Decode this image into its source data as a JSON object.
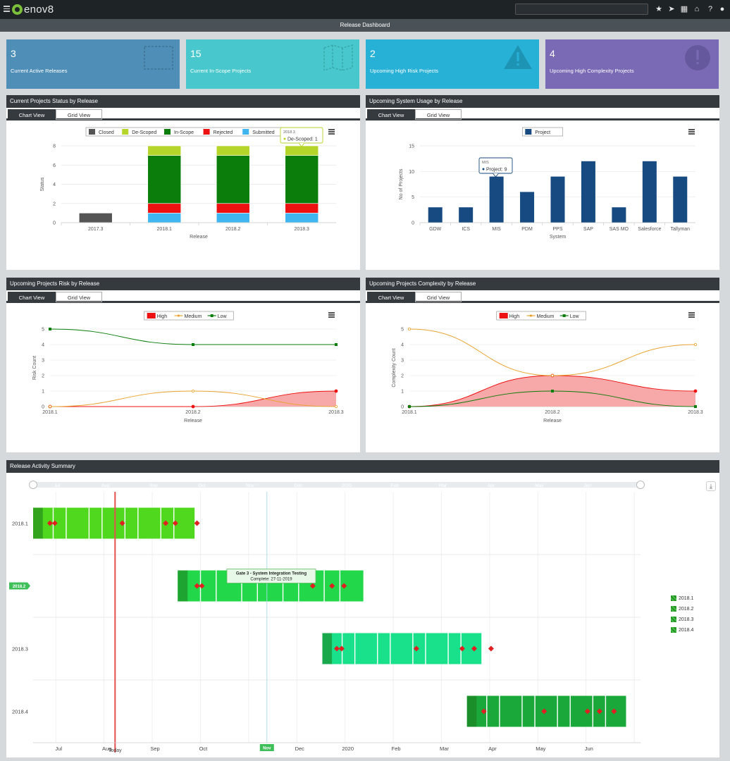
{
  "app": {
    "logo_text": "enov8",
    "page_title": "Release Dashboard"
  },
  "top_icons": [
    "star-icon",
    "rocket-icon",
    "calendar-icon",
    "store-icon",
    "help-icon",
    "user-icon"
  ],
  "cards": [
    {
      "value": "3",
      "label": "Current Active Releases",
      "color": "#4f8fb7"
    },
    {
      "value": "15",
      "label": "Current In-Scope Projects",
      "color": "#48c8cc"
    },
    {
      "value": "2",
      "label": "Upcoming High Risk Projects",
      "color": "#27b1d6"
    },
    {
      "value": "4",
      "label": "Upcoming High Complexity Projects",
      "color": "#7a6ab5"
    }
  ],
  "tabs": {
    "chart": "Chart View",
    "grid": "Grid View"
  },
  "panels": {
    "status": {
      "title": "Current Projects Status by Release"
    },
    "usage": {
      "title": "Upcoming System Usage by Release"
    },
    "risk": {
      "title": "Upcoming Projects Risk by Release"
    },
    "complexity": {
      "title": "Upcoming Projects Complexity by Release"
    },
    "activity": {
      "title": "Release Activity Summary"
    }
  },
  "chart_data": [
    {
      "type": "bar",
      "stacked": true,
      "categories": [
        "2017.3",
        "2018.1",
        "2018.2",
        "2018.3"
      ],
      "series": [
        {
          "name": "Closed",
          "color": "#555555",
          "values": [
            1,
            0,
            0,
            0
          ]
        },
        {
          "name": "De-Scoped",
          "color": "#b5d52a",
          "values": [
            0,
            1,
            1,
            1
          ]
        },
        {
          "name": "In-Scope",
          "color": "#0a7d0a",
          "values": [
            0,
            5,
            5,
            5
          ]
        },
        {
          "name": "Rejected",
          "color": "#ee1111",
          "values": [
            0,
            1,
            1,
            1
          ]
        },
        {
          "name": "Submitted",
          "color": "#3fb6f0",
          "values": [
            0,
            1,
            1,
            1
          ]
        }
      ],
      "stack_order": [
        "Submitted",
        "Rejected",
        "In-Scope",
        "De-Scoped",
        "Closed"
      ],
      "xlabel": "Release",
      "ylabel": "Status",
      "ylim": [
        0,
        8
      ],
      "yticks": [
        0,
        2,
        4,
        6,
        8
      ],
      "tooltip": {
        "header": "2018.3",
        "text": "De-Scoped: 1"
      }
    },
    {
      "type": "bar",
      "categories": [
        "GDW",
        "ICS",
        "MIS",
        "PDM",
        "PPS",
        "SAP",
        "SAS MO",
        "Salesforce",
        "Tallyman"
      ],
      "series": [
        {
          "name": "Project",
          "color": "#164a80",
          "values": [
            3,
            3,
            9,
            6,
            9,
            12,
            3,
            12,
            9
          ]
        }
      ],
      "xlabel": "System",
      "ylabel": "No of Projects",
      "ylim": [
        0,
        15
      ],
      "yticks": [
        0,
        5,
        10,
        15
      ],
      "tooltip": {
        "header": "MIS",
        "text": "Project: 9"
      }
    },
    {
      "type": "area",
      "categories": [
        "2018.1",
        "2018.2",
        "2018.3"
      ],
      "series": [
        {
          "name": "High",
          "color": "#ee1111",
          "values": [
            0,
            0,
            1
          ]
        },
        {
          "name": "Medium",
          "color": "#e8a430",
          "values": [
            0,
            1,
            0
          ]
        },
        {
          "name": "Low",
          "color": "#0a7d0a",
          "values": [
            5,
            4,
            4
          ]
        }
      ],
      "xlabel": "Release",
      "ylabel": "Risk Count",
      "ylim": [
        0,
        5
      ],
      "yticks": [
        0,
        1,
        2,
        3,
        4,
        5
      ]
    },
    {
      "type": "area",
      "categories": [
        "2018.1",
        "2018.2",
        "2018.3"
      ],
      "series": [
        {
          "name": "High",
          "color": "#ee1111",
          "values": [
            0,
            2,
            1
          ]
        },
        {
          "name": "Medium",
          "color": "#e8a430",
          "values": [
            5,
            2,
            4
          ]
        },
        {
          "name": "Low",
          "color": "#0a7d0a",
          "values": [
            0,
            1,
            0
          ]
        }
      ],
      "xlabel": "Release",
      "ylabel": "Complexity Count",
      "ylim": [
        0,
        5
      ],
      "yticks": [
        0,
        1,
        2,
        3,
        4,
        5
      ]
    }
  ],
  "gantt": {
    "months": [
      "Jul",
      "Aug",
      "Sep",
      "Oct",
      "Nov",
      "Dec",
      "2020",
      "Feb",
      "Mar",
      "Apr",
      "May",
      "Jun"
    ],
    "nav_months": [
      "Jul",
      "Aug",
      "Sep",
      "Oct",
      "Nov",
      "Dec",
      "2020",
      "Feb",
      "Mar",
      "Apr",
      "May",
      "Jun"
    ],
    "rows": [
      {
        "label": "2018.1",
        "start": 0,
        "end": 3.35,
        "color": "#4fd81e"
      },
      {
        "label": "2018.2",
        "start": 3.0,
        "end": 6.85,
        "color": "#22d84a"
      },
      {
        "label": "2018.3",
        "start": 6.0,
        "end": 9.3,
        "color": "#19e08a"
      },
      {
        "label": "2018.4",
        "start": 9.0,
        "end": 12.3,
        "color": "#1aa83a"
      }
    ],
    "milestones": [
      [
        0.35,
        0.45,
        1.85,
        2.75,
        2.95,
        3.4
      ],
      [
        3.4,
        3.5,
        5.8,
        6.2,
        6.45
      ],
      [
        6.3,
        6.4,
        7.95,
        8.9,
        9.15,
        9.5
      ],
      [
        9.35,
        10.6,
        11.5,
        11.75,
        12.05
      ]
    ],
    "today_label": "Today",
    "today_pos": 1.7,
    "current_marker": "Nov",
    "current_pos": 4.85,
    "highlight_label": "2018.2",
    "tooltip_title": "Gate 3 - System Integration Testing",
    "tooltip_text": "Complete: 27-11-2019",
    "legend": [
      "2018.1",
      "2018.2",
      "2018.3",
      "2018.4"
    ]
  }
}
